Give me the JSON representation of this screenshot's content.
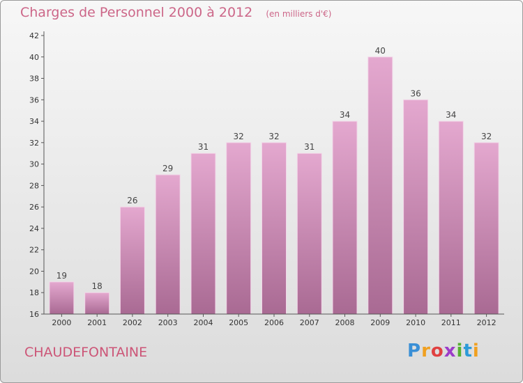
{
  "title": "Charges de Personnel 2000 à 2012",
  "subtitle": "(en milliers d'€)",
  "commune": "CHAUDEFONTAINE",
  "logo": {
    "text": "Proxiti",
    "colors": [
      "#3a8fd6",
      "#f0a020",
      "#e04040",
      "#9c3cc8",
      "#56b030",
      "#2c9ad8"
    ]
  },
  "chart_data": {
    "type": "bar",
    "title": "Charges de Personnel 2000 à 2012",
    "subtitle": "(en milliers d'€)",
    "categories": [
      "2000",
      "2001",
      "2002",
      "2003",
      "2004",
      "2005",
      "2006",
      "2007",
      "2008",
      "2009",
      "2010",
      "2011",
      "2012"
    ],
    "values": [
      19,
      18,
      26,
      29,
      31,
      32,
      32,
      31,
      34,
      40,
      36,
      34,
      32
    ],
    "ylim": [
      16,
      42
    ],
    "yticks": [
      16,
      18,
      20,
      22,
      24,
      26,
      28,
      30,
      32,
      34,
      36,
      38,
      40,
      42
    ],
    "grid": false,
    "bar_color": "#d9a0c4",
    "text_color": "#cc6688"
  }
}
